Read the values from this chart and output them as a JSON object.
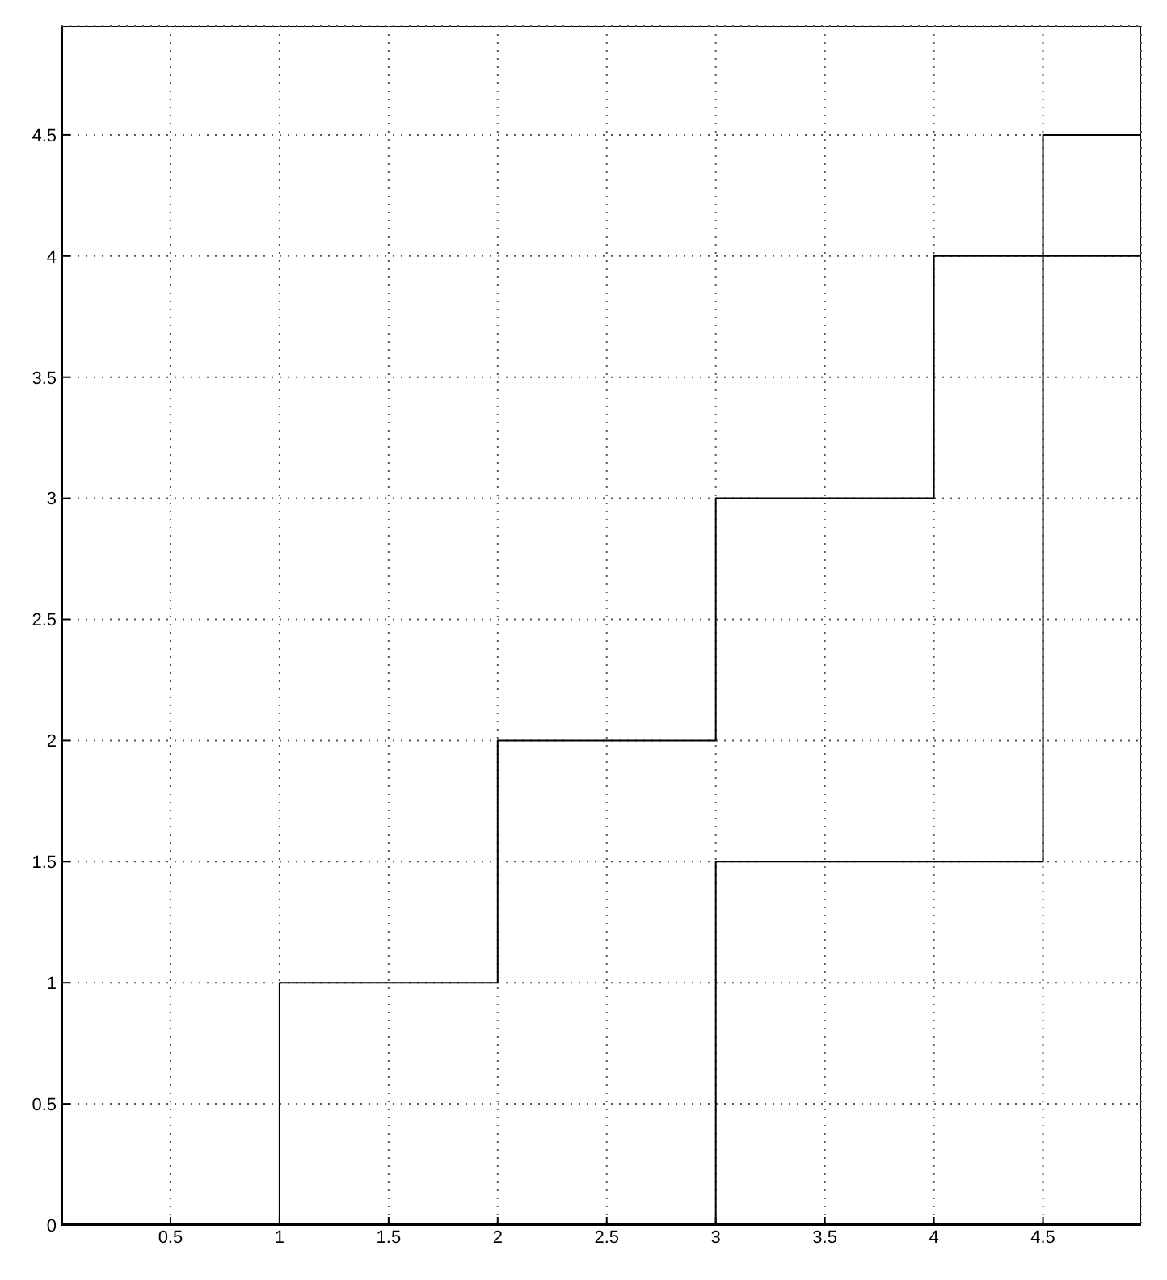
{
  "chart_data": {
    "type": "step",
    "xlim": [
      0,
      4.95
    ],
    "ylim": [
      0,
      4.95
    ],
    "xticks": [
      0.5,
      1,
      1.5,
      2,
      2.5,
      3,
      3.5,
      4,
      4.5
    ],
    "yticks": [
      0,
      0.5,
      1,
      1.5,
      2,
      2.5,
      3,
      3.5,
      4,
      4.5
    ],
    "grid": true,
    "line_style": "solid",
    "marker": "none",
    "series": [
      {
        "color": "#000000",
        "x": [
          1,
          1,
          2,
          3,
          4,
          4.95
        ],
        "values": [
          0,
          1,
          2,
          3,
          4,
          4
        ]
      },
      {
        "color": "#000000",
        "x": [
          3,
          3,
          4.5,
          4.95
        ],
        "values": [
          0,
          1.5,
          4.5,
          4.5
        ]
      }
    ]
  }
}
